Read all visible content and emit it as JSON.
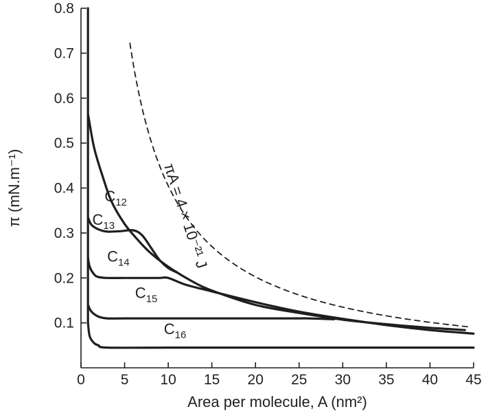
{
  "chart_data": {
    "type": "line",
    "xlabel": "Area per molecule, A (nm²)",
    "ylabel": "π (mN.m⁻¹)",
    "xlim": [
      0,
      45
    ],
    "ylim": [
      0,
      0.8
    ],
    "xticks": [
      "0",
      "5",
      "10",
      "15",
      "20",
      "25",
      "30",
      "35",
      "40",
      "45"
    ],
    "xtick_values": [
      0,
      5,
      10,
      15,
      20,
      25,
      30,
      35,
      40,
      45
    ],
    "yticks": [
      "0.1",
      "0.2",
      "0.3",
      "0.4",
      "0.5",
      "0.6",
      "0.7",
      "0.8"
    ],
    "ytick_values": [
      0.1,
      0.2,
      0.3,
      0.4,
      0.5,
      0.6,
      0.7,
      0.8
    ],
    "grid": false,
    "series": [
      {
        "name": "C12",
        "label_main": "C",
        "label_sub": "12",
        "label_at": [
          2.7,
          0.37
        ],
        "x": [
          0.8,
          1.5,
          2.5,
          3.5,
          5.0,
          6.5,
          8.0,
          10.0,
          12.5,
          15.0,
          20.0,
          25.0,
          30.0,
          35.0,
          40.0,
          44.0
        ],
        "y": [
          0.565,
          0.49,
          0.425,
          0.37,
          0.32,
          0.285,
          0.255,
          0.225,
          0.195,
          0.172,
          0.14,
          0.122,
          0.107,
          0.097,
          0.089,
          0.084
        ]
      },
      {
        "name": "C13",
        "label_main": "C",
        "label_sub": "13",
        "label_at": [
          1.3,
          0.318
        ],
        "x": [
          0.8,
          1.2,
          2.0,
          3.0,
          4.5,
          6.0,
          7.0,
          8.0,
          9.0,
          10.0,
          11.0
        ],
        "y": [
          0.335,
          0.318,
          0.308,
          0.303,
          0.304,
          0.306,
          0.295,
          0.268,
          0.24,
          0.222,
          0.212
        ]
      },
      {
        "name": "C14",
        "label_main": "C",
        "label_sub": "14",
        "label_at": [
          3.0,
          0.236
        ],
        "x": [
          0.8,
          1.0,
          1.5,
          2.0,
          3.0,
          5.0,
          7.0,
          9.0,
          10.0,
          12.0,
          15.0,
          20.0,
          25.0,
          30.0,
          35.0,
          40.0,
          45.0
        ],
        "y": [
          0.245,
          0.225,
          0.208,
          0.202,
          0.2,
          0.2,
          0.2,
          0.2,
          0.2,
          0.185,
          0.17,
          0.146,
          0.125,
          0.109,
          0.095,
          0.084,
          0.076
        ]
      },
      {
        "name": "C15",
        "label_main": "C",
        "label_sub": "15",
        "label_at": [
          6.2,
          0.155
        ],
        "x": [
          0.8,
          1.2,
          2.0,
          3.0,
          5.0,
          10.0,
          15.0,
          20.0,
          25.0,
          26.0,
          29.0
        ],
        "y": [
          0.14,
          0.125,
          0.114,
          0.11,
          0.11,
          0.11,
          0.11,
          0.11,
          0.11,
          0.11,
          0.108
        ]
      },
      {
        "name": "C16",
        "label_main": "C",
        "label_sub": "16",
        "label_at": [
          9.5,
          0.075
        ],
        "x": [
          0.8,
          1.0,
          1.5,
          2.0,
          3.0,
          10.0,
          20.0,
          30.0,
          40.0,
          45.0
        ],
        "y": [
          0.1,
          0.07,
          0.055,
          0.05,
          0.045,
          0.045,
          0.045,
          0.045,
          0.045,
          0.045
        ]
      }
    ],
    "dashed_curve": {
      "label": "πA = 4 × 10⁻²¹ J",
      "label_at": [
        9.5,
        0.45
      ],
      "label_rotation_deg": 72,
      "k": 4.5,
      "x_from": 5.6,
      "x_to": 44.5
    },
    "vertical_line": {
      "x": 0.8,
      "y_from": 0.1,
      "y_to": 0.8
    }
  }
}
